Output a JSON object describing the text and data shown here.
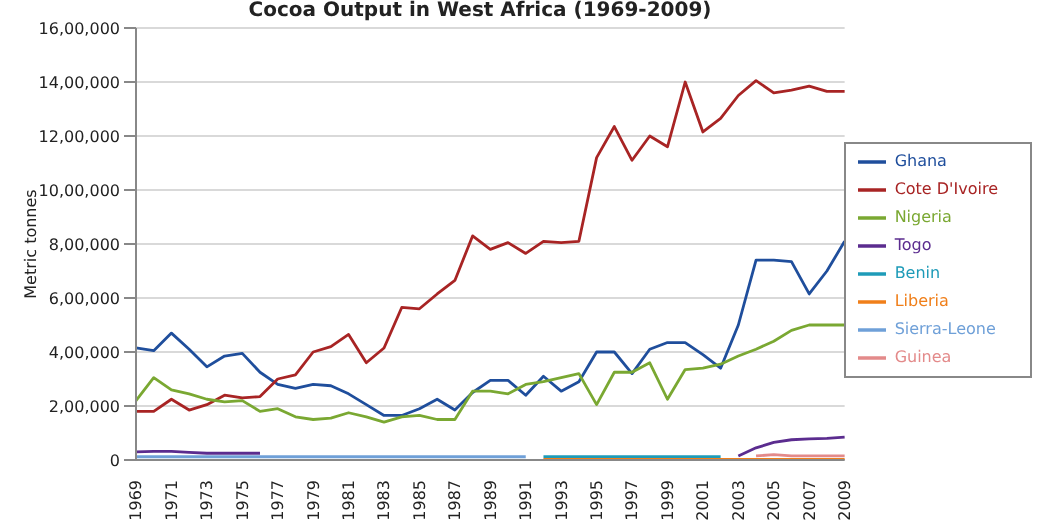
{
  "chart_data": {
    "type": "line",
    "title": "Cocoa Output in West Africa (1969-2009)",
    "ylabel": "Metric tonnes",
    "categories": [
      "1969",
      null,
      "1971",
      null,
      "1973",
      null,
      "1975",
      null,
      "1977",
      null,
      "1979",
      null,
      "1981",
      null,
      "1983",
      null,
      "1985",
      null,
      "1987",
      null,
      "1989",
      null,
      "1991",
      null,
      "1993",
      null,
      "1995",
      null,
      "1997",
      null,
      "1999",
      null,
      "2001",
      null,
      "2003",
      null,
      "2005",
      null,
      "2007",
      null,
      "2009"
    ],
    "series": [
      {
        "name": "Ghana",
        "color": "#1f4e9c",
        "values": [
          415000,
          405000,
          470000,
          410000,
          345000,
          385000,
          395000,
          325000,
          280000,
          265000,
          280000,
          275000,
          245000,
          205000,
          165000,
          165000,
          190000,
          225000,
          185000,
          250000,
          295000,
          295000,
          240000,
          310000,
          255000,
          290000,
          400000,
          400000,
          320000,
          410000,
          435000,
          435000,
          390000,
          340000,
          500000,
          740000,
          740000,
          735000,
          615000,
          700000,
          810000
        ]
      },
      {
        "name": "Cote D'Ivoire",
        "color": "#a82424",
        "values": [
          180000,
          180000,
          225000,
          185000,
          205000,
          240000,
          230000,
          235000,
          300000,
          315000,
          400000,
          420000,
          465000,
          360000,
          415000,
          565000,
          560000,
          615000,
          665000,
          830000,
          780000,
          805000,
          765000,
          810000,
          805000,
          810000,
          1120000,
          1235000,
          1110000,
          1200000,
          1160000,
          1400000,
          1215000,
          1265000,
          1350000,
          1405000,
          1360000,
          1370000,
          1385000,
          1365000,
          1365000
        ]
      },
      {
        "name": "Nigeria",
        "color": "#7aa832",
        "values": [
          220000,
          305000,
          260000,
          245000,
          225000,
          215000,
          220000,
          180000,
          190000,
          160000,
          150000,
          155000,
          175000,
          160000,
          140000,
          160000,
          165000,
          150000,
          150000,
          255000,
          255000,
          245000,
          280000,
          290000,
          305000,
          320000,
          205000,
          325000,
          325000,
          360000,
          225000,
          335000,
          340000,
          355000,
          385000,
          410000,
          440000,
          480000,
          500000,
          500000,
          500000
        ]
      },
      {
        "name": "Togo",
        "color": "#5b2c8f",
        "values": [
          30000,
          32000,
          32000,
          28000,
          25000,
          25000,
          25000,
          25000,
          null,
          null,
          null,
          null,
          null,
          null,
          null,
          null,
          null,
          null,
          null,
          null,
          null,
          null,
          null,
          null,
          null,
          null,
          null,
          null,
          null,
          null,
          null,
          null,
          null,
          null,
          15000,
          45000,
          65000,
          75000,
          78000,
          80000,
          85000
        ]
      },
      {
        "name": "Benin",
        "color": "#1e9bb8",
        "values": [
          null,
          null,
          null,
          null,
          null,
          null,
          null,
          null,
          null,
          null,
          null,
          null,
          null,
          null,
          null,
          null,
          null,
          null,
          null,
          null,
          null,
          null,
          null,
          12000,
          12000,
          12000,
          12000,
          12000,
          12000,
          12000,
          12000,
          12000,
          12000,
          12000,
          null,
          null,
          null,
          null,
          null,
          null,
          null
        ]
      },
      {
        "name": "Liberia",
        "color": "#f07f1a",
        "values": [
          null,
          null,
          null,
          null,
          null,
          null,
          null,
          null,
          null,
          null,
          null,
          null,
          null,
          null,
          null,
          null,
          null,
          null,
          null,
          null,
          null,
          null,
          null,
          2000,
          2000,
          2000,
          2000,
          2000,
          2000,
          2000,
          2000,
          2000,
          2000,
          2000,
          2000,
          2000,
          2000,
          2000,
          2000,
          2000,
          2000
        ]
      },
      {
        "name": "Sierra-Leone",
        "color": "#6fa0d8",
        "values": [
          12000,
          12000,
          12000,
          12000,
          12000,
          12000,
          12000,
          12000,
          12000,
          12000,
          12000,
          12000,
          12000,
          12000,
          12000,
          12000,
          12000,
          12000,
          12000,
          12000,
          12000,
          12000,
          12000,
          null,
          null,
          null,
          null,
          null,
          null,
          null,
          null,
          null,
          null,
          null,
          null,
          null,
          null,
          null,
          null,
          null,
          null
        ]
      },
      {
        "name": "Guinea",
        "color": "#e38a8a",
        "values": [
          null,
          null,
          null,
          null,
          null,
          null,
          null,
          null,
          null,
          null,
          null,
          null,
          null,
          null,
          null,
          null,
          null,
          null,
          null,
          null,
          null,
          null,
          null,
          null,
          null,
          null,
          null,
          null,
          null,
          null,
          null,
          null,
          null,
          null,
          null,
          15000,
          20000,
          15000,
          15000,
          15000,
          15000
        ]
      }
    ],
    "ylim": [
      0,
      1600000
    ],
    "yticks": [
      0,
      {
        "value": 200000,
        "label": "2,00,000"
      },
      {
        "value": 400000,
        "label": "4,00,000"
      },
      {
        "value": 600000,
        "label": "6,00,000"
      },
      {
        "value": 800000,
        "label": "8,00,000"
      },
      {
        "value": 1000000,
        "label": "10,00,000"
      },
      {
        "value": 1200000,
        "label": "12,00,000"
      },
      {
        "value": 1400000,
        "label": "14,00,000"
      },
      {
        "value": 1600000,
        "label": "16,00,000"
      }
    ],
    "grid": "y",
    "legend": "right",
    "marker": "none",
    "line_style": "solid"
  }
}
